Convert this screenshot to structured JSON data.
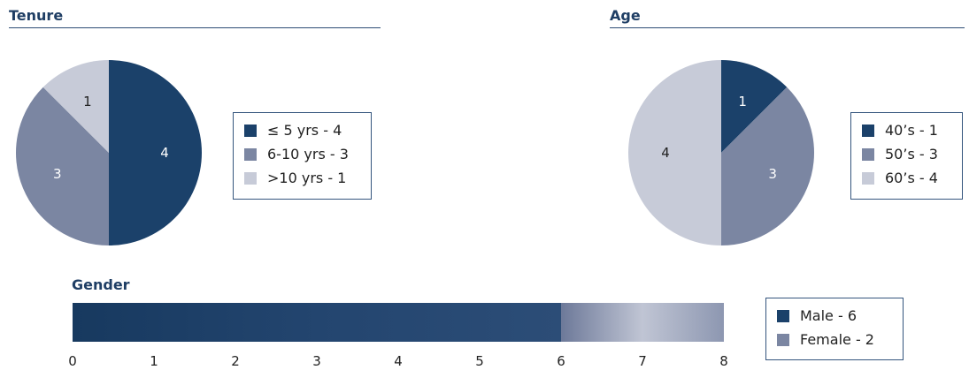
{
  "colors": {
    "dark": "#1b416a",
    "mid": "#7b86a2",
    "light": "#c7cbd8",
    "title": "#1f3e64",
    "rule": "#2d4c74"
  },
  "chart_data": [
    {
      "type": "pie",
      "title": "Tenure",
      "start_angle_deg": 0,
      "direction": "clockwise",
      "slices": [
        {
          "label": "4",
          "value": 4,
          "color": "#1b416a",
          "text_color": "#ffffff",
          "legend": "≤ 5 yrs - 4"
        },
        {
          "label": "3",
          "value": 3,
          "color": "#7b86a2",
          "text_color": "#ffffff",
          "legend": "6-10 yrs - 3"
        },
        {
          "label": "1",
          "value": 1,
          "color": "#c7cbd8",
          "text_color": "#222222",
          "legend": ">10 yrs - 1"
        }
      ],
      "legend_position": "right"
    },
    {
      "type": "pie",
      "title": "Age",
      "start_angle_deg": 0,
      "direction": "clockwise",
      "slices": [
        {
          "label": "1",
          "value": 1,
          "color": "#1b416a",
          "text_color": "#ffffff",
          "legend": "40’s - 1"
        },
        {
          "label": "3",
          "value": 3,
          "color": "#7b86a2",
          "text_color": "#ffffff",
          "legend": "50’s - 3"
        },
        {
          "label": "4",
          "value": 4,
          "color": "#c7cbd8",
          "text_color": "#222222",
          "legend": "60’s - 4"
        }
      ],
      "legend_position": "right"
    },
    {
      "type": "bar",
      "orientation": "horizontal",
      "stacked": true,
      "title": "Gender",
      "xlim": [
        0,
        8
      ],
      "ticks": [
        0,
        1,
        2,
        3,
        4,
        5,
        6,
        7,
        8
      ],
      "series": [
        {
          "name": "Male - 6",
          "value": 6,
          "color": "#1b416a"
        },
        {
          "name": "Female - 2",
          "value": 2,
          "color": "#7b86a2"
        }
      ],
      "legend_position": "right"
    }
  ]
}
